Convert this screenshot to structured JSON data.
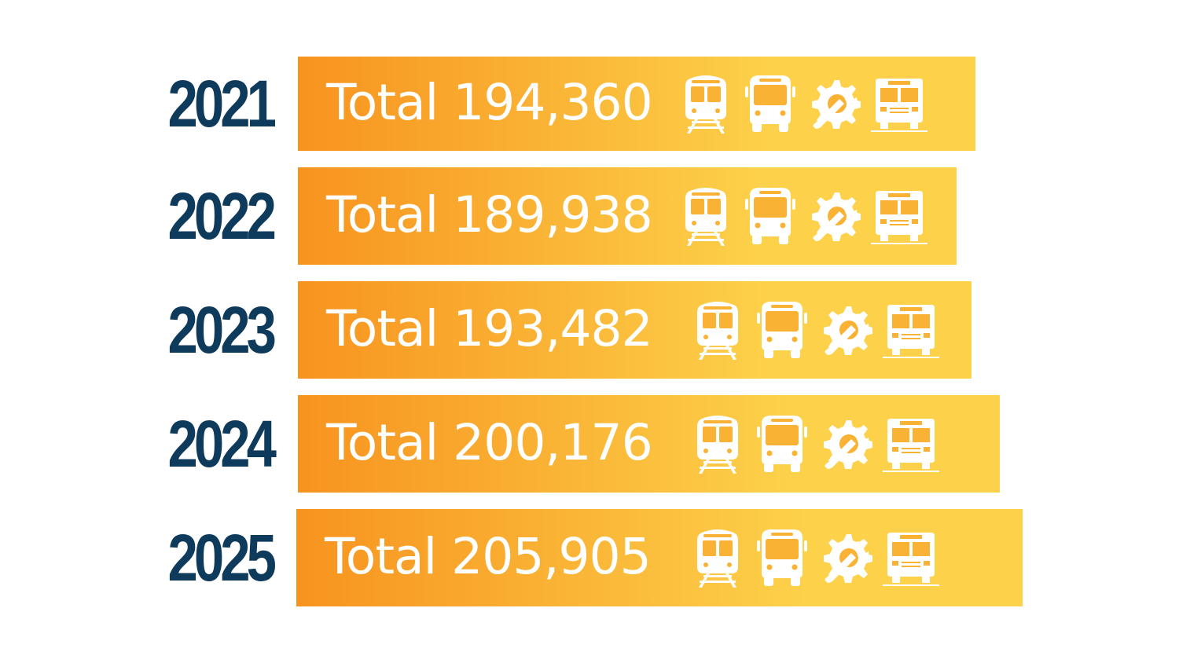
{
  "chart_data": {
    "type": "bar",
    "orientation": "horizontal",
    "categories": [
      "2021",
      "2022",
      "2023",
      "2024",
      "2025"
    ],
    "values": [
      194360,
      189938,
      193482,
      200176,
      205905
    ],
    "labels": [
      "Total 194,360",
      "Total 189,938",
      "Total 193,482",
      "Total 200,176",
      "Total 205,905"
    ],
    "title": "",
    "xlabel": "",
    "ylabel": "",
    "grid": false
  },
  "icons": [
    "train-icon",
    "bus-icon",
    "gear-wrench-icon",
    "school-bus-icon"
  ],
  "colors": {
    "year_text": "#0e3a5c",
    "bar_start": "#f7931e",
    "bar_end": "#fdd14a",
    "label_text": "#ffffff"
  }
}
